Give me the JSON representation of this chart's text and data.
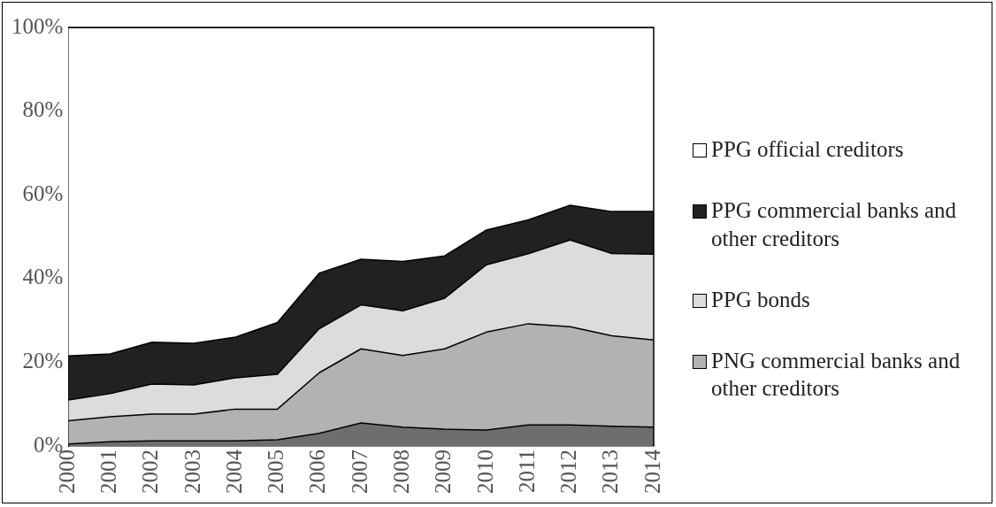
{
  "chart_data": {
    "type": "area",
    "stacked": true,
    "legend": "right",
    "grid": false,
    "marker": "none",
    "categories": [
      "2000",
      "2001",
      "2002",
      "2003",
      "2004",
      "2005",
      "2006",
      "2007",
      "2008",
      "2009",
      "2010",
      "2011",
      "2012",
      "2013",
      "2014"
    ],
    "ylim": [
      0,
      100
    ],
    "yticks": [
      {
        "value": 0,
        "label": "0%"
      },
      {
        "value": 20,
        "label": "20%"
      },
      {
        "value": 40,
        "label": "40%"
      },
      {
        "value": 60,
        "label": "60%"
      },
      {
        "value": 80,
        "label": "80%"
      },
      {
        "value": 100,
        "label": "100%"
      }
    ],
    "series": [
      {
        "color": "#6e6e6e",
        "values": [
          0.5,
          1.0,
          1.2,
          1.2,
          1.2,
          1.5,
          3,
          5.5,
          4.5,
          4,
          3.8,
          5,
          5,
          4.7,
          4.5
        ]
      },
      {
        "name": "PNG commercial banks and other creditors",
        "color": "#b2b2b2",
        "values": [
          5.5,
          6,
          6.4,
          6.4,
          7.6,
          7.3,
          14.5,
          17.7,
          17.1,
          19.2,
          23.4,
          24.2,
          23.5,
          21.6,
          20.8
        ]
      },
      {
        "name": "PPG bonds",
        "color": "#dcdcdc",
        "values": [
          5,
          5.5,
          7.2,
          7,
          7.5,
          8.3,
          10.5,
          10.5,
          10.7,
          12.1,
          16.1,
          16.7,
          20.7,
          19.7,
          20.5
        ]
      },
      {
        "name": "PPG commercial banks and other creditors",
        "color": "#212121",
        "values": [
          10.5,
          9.5,
          10,
          9.9,
          9.7,
          12.4,
          13.3,
          10.9,
          11.8,
          10.1,
          8.3,
          8.1,
          8.3,
          10,
          10.2
        ]
      },
      {
        "name": "PPG official creditors",
        "color": "#ffffff",
        "values": [
          78.5,
          78,
          75.2,
          75.5,
          74,
          70.5,
          58.7,
          55.4,
          55.9,
          54.6,
          48.4,
          46,
          42.5,
          44,
          44
        ]
      }
    ]
  }
}
